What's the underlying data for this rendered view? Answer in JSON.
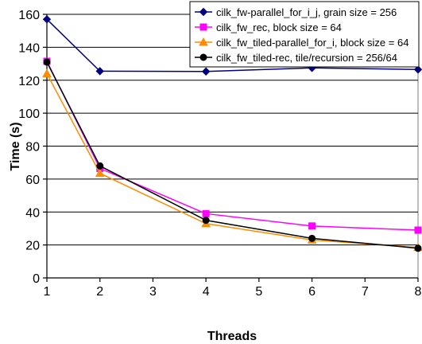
{
  "chart_data": {
    "type": "line",
    "title": "",
    "xlabel": "Threads",
    "ylabel": "Time (s)",
    "xlim": [
      1,
      8
    ],
    "ylim": [
      0,
      160
    ],
    "x_ticks": [
      1,
      2,
      3,
      4,
      5,
      6,
      7,
      8
    ],
    "y_ticks": [
      0,
      20,
      40,
      60,
      80,
      100,
      120,
      140,
      160
    ],
    "grid": true,
    "legend_position": "top-right",
    "series": [
      {
        "name": "cilk_fw-parallel_for_i_j, grain size = 256",
        "color": "#000080",
        "marker": "diamond",
        "x": [
          1,
          2,
          4,
          6,
          8
        ],
        "y": [
          157,
          125.5,
          125.3,
          127.5,
          126.5
        ]
      },
      {
        "name": "cilk_fw_rec, block size = 64",
        "color": "#ff00ff",
        "marker": "square",
        "x": [
          1,
          2,
          4,
          6,
          8
        ],
        "y": [
          131.5,
          66.5,
          39,
          31.5,
          29
        ]
      },
      {
        "name": "cilk_fw_tiled-parallel_for_i, block size = 64",
        "color": "#ff8c00",
        "marker": "triangle",
        "x": [
          1,
          2,
          4,
          6,
          8
        ],
        "y": [
          124,
          63.5,
          33,
          23,
          18.5
        ]
      },
      {
        "name": "cilk_fw_tiled-rec, tile/recursion = 256/64",
        "color": "#000000",
        "marker": "circle",
        "x": [
          1,
          2,
          4,
          6,
          8
        ],
        "y": [
          131,
          68,
          35,
          24,
          18
        ]
      }
    ]
  }
}
